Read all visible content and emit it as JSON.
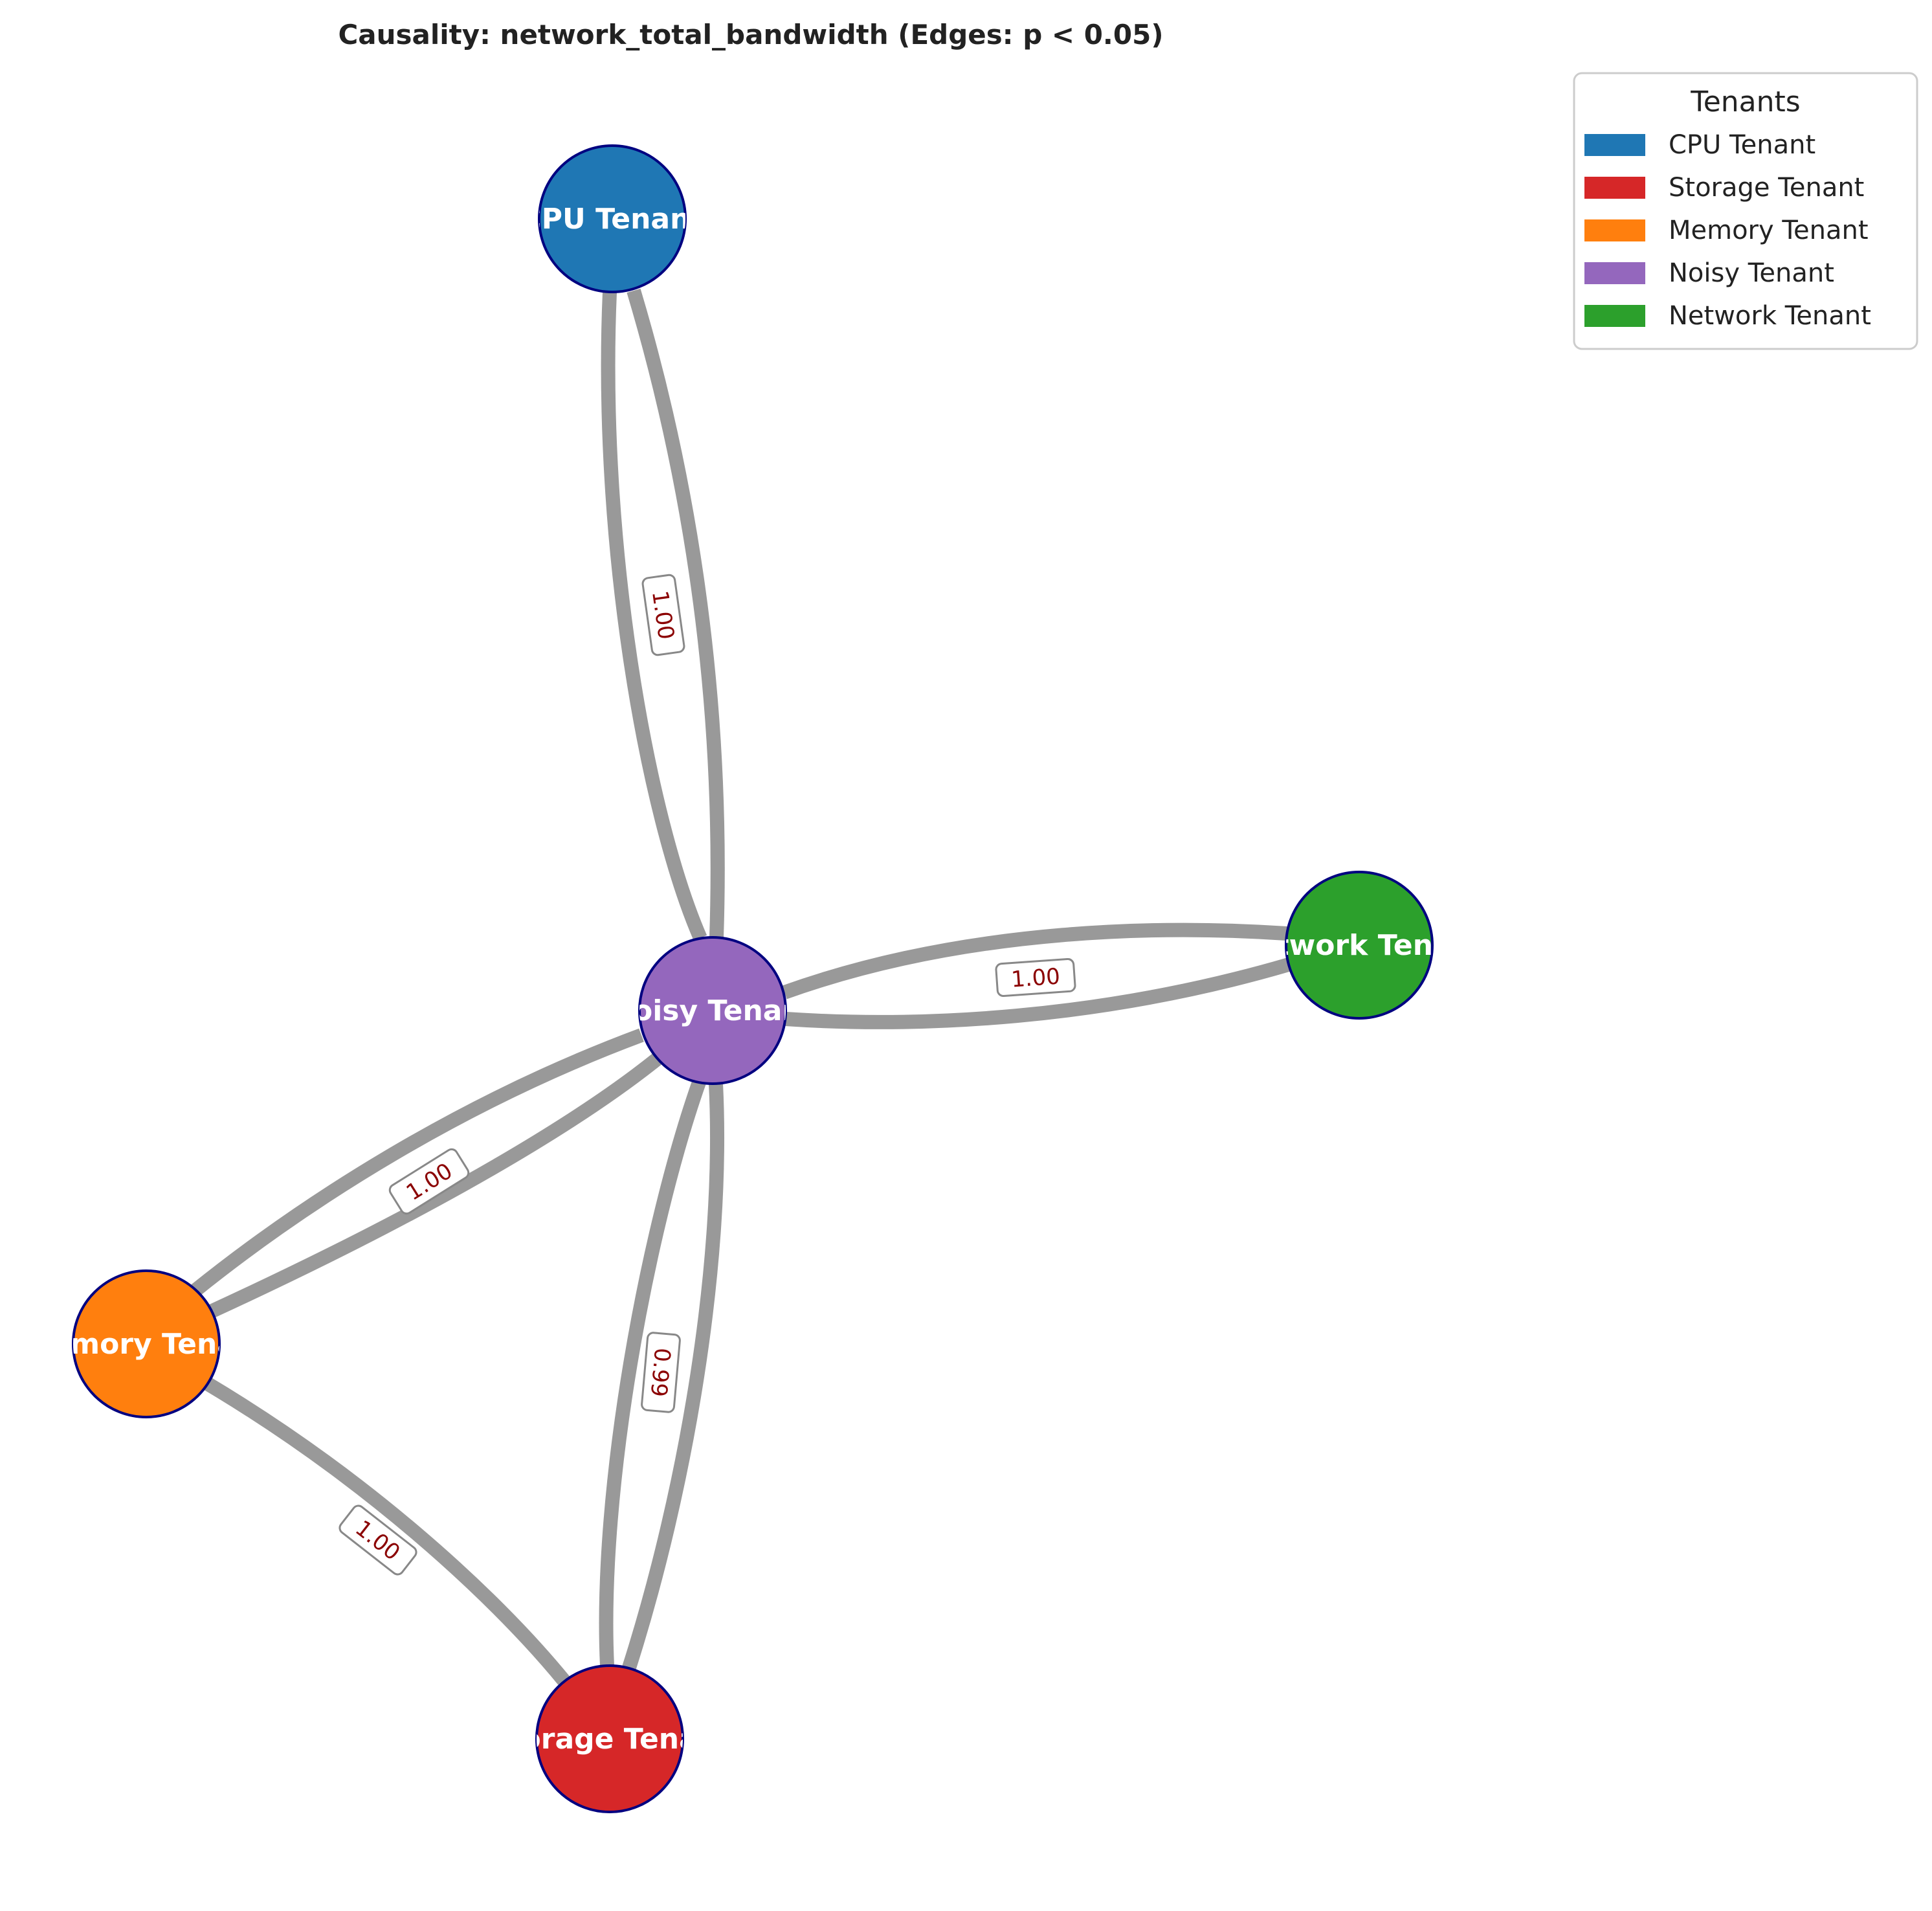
{
  "title": "Causality: network_total_bandwidth (Edges: p < 0.05)",
  "nodes": [
    {
      "id": "cpu",
      "label": "CPU Tenant",
      "color": "#1f77b4"
    },
    {
      "id": "noisy",
      "label": "Noisy Tenant",
      "color": "#9467bd"
    },
    {
      "id": "network",
      "label": "Network Tenant",
      "color": "#2ca02c"
    },
    {
      "id": "memory",
      "label": "Memory Tenant",
      "color": "#ff7f0e"
    },
    {
      "id": "storage",
      "label": "Storage Tenant",
      "color": "#d62728"
    }
  ],
  "node_border_color": "#000080",
  "edge_color": "#999999",
  "edges": [
    {
      "source": "cpu",
      "target": "noisy"
    },
    {
      "source": "noisy",
      "target": "cpu"
    },
    {
      "source": "noisy",
      "target": "network"
    },
    {
      "source": "network",
      "target": "noisy"
    },
    {
      "source": "noisy",
      "target": "memory"
    },
    {
      "source": "memory",
      "target": "noisy"
    },
    {
      "source": "noisy",
      "target": "storage"
    },
    {
      "source": "storage",
      "target": "noisy"
    },
    {
      "source": "memory",
      "target": "storage"
    }
  ],
  "edge_labels": [
    {
      "between": [
        "cpu",
        "noisy"
      ],
      "text": "1.00"
    },
    {
      "between": [
        "noisy",
        "network"
      ],
      "text": "1.00"
    },
    {
      "between": [
        "noisy",
        "memory"
      ],
      "text": "1.00"
    },
    {
      "between": [
        "noisy",
        "storage"
      ],
      "text": "0.99"
    },
    {
      "between": [
        "memory",
        "storage"
      ],
      "text": "1.00"
    }
  ],
  "legend": {
    "title": "Tenants",
    "items": [
      {
        "label": "CPU Tenant",
        "color": "#1f77b4"
      },
      {
        "label": "Storage Tenant",
        "color": "#d62728"
      },
      {
        "label": "Memory Tenant",
        "color": "#ff7f0e"
      },
      {
        "label": "Noisy Tenant",
        "color": "#9467bd"
      },
      {
        "label": "Network Tenant",
        "color": "#2ca02c"
      }
    ]
  }
}
